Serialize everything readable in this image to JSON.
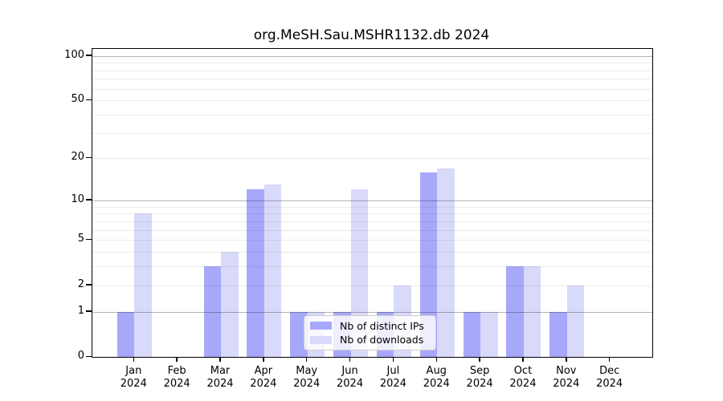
{
  "chart_data": {
    "type": "bar",
    "title": "org.MeSH.Sau.MSHR1132.db 2024",
    "categories": [
      "Jan",
      "Feb",
      "Mar",
      "Apr",
      "May",
      "Jun",
      "Jul",
      "Aug",
      "Sep",
      "Oct",
      "Nov",
      "Dec"
    ],
    "category_year": "2024",
    "series": [
      {
        "name": "Nb of distinct IPs",
        "color": "#a8a8fa",
        "values": [
          1,
          0,
          3,
          12,
          1,
          1,
          1,
          16,
          1,
          3,
          1,
          0
        ]
      },
      {
        "name": "Nb of downloads",
        "color": "#d9d9fa",
        "values": [
          8,
          0,
          4,
          13,
          1,
          12,
          2,
          17,
          1,
          3,
          2,
          0
        ]
      }
    ],
    "yscale": "log10(1+v)",
    "ylim": [
      0,
      110
    ],
    "y_ticks": [
      0,
      1,
      2,
      5,
      10,
      20,
      50,
      100
    ],
    "y_major_gridlines": [
      1,
      10,
      100
    ],
    "y_minor_gridlines": [
      2,
      3,
      4,
      5,
      6,
      7,
      8,
      9,
      20,
      30,
      40,
      50,
      60,
      70,
      80,
      90
    ],
    "grid": true,
    "legend_position": "lower-center-inside",
    "colors": {
      "axis": "#000000",
      "major_grid": "#b3b3b3",
      "minor_grid": "#ebebeb",
      "legend_border": "#cccccc",
      "background": "#ffffff"
    }
  }
}
